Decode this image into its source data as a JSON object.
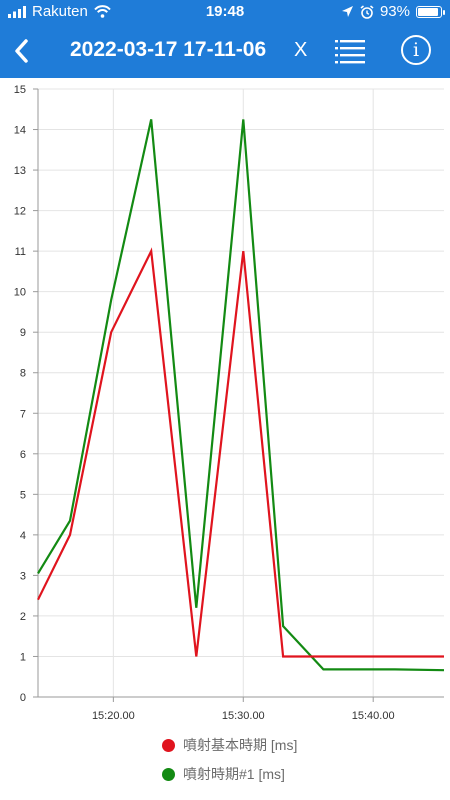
{
  "status_bar": {
    "carrier": "Rakuten",
    "time": "19:48",
    "battery": "93%",
    "battery_level": 0.93,
    "icons": [
      "signal-icon",
      "wifi-icon",
      "location-arrow-icon",
      "alarm-clock-icon",
      "battery-icon"
    ]
  },
  "nav": {
    "title": "2022-03-17 17-11-06",
    "close_label": "X",
    "info_label": "i",
    "icons": [
      "back-chevron-icon",
      "list-icon",
      "info-icon"
    ]
  },
  "colors": {
    "header": "#1f7cd8",
    "series_red": "#e0141e",
    "series_green": "#138a13"
  },
  "chart_data": {
    "type": "line",
    "x_tick_labels": [
      "15:20.00",
      "15:30.00",
      "15:40.00"
    ],
    "x_ticks_seconds": [
      1200,
      1800,
      2400
    ],
    "xlim_seconds": [
      852,
      2727
    ],
    "y_tick_labels": [
      "0",
      "1",
      "2",
      "3",
      "4",
      "5",
      "6",
      "7",
      "8",
      "9",
      "10",
      "11",
      "12",
      "13",
      "14",
      "15"
    ],
    "ylim": [
      0,
      15
    ],
    "grid": true,
    "legend_position": "bottom",
    "series": [
      {
        "name": "噴射基本時期 [ms]",
        "color": "#e0141e",
        "x_seconds": [
          852,
          1000,
          1190,
          1375,
          1583,
          1800,
          1984,
          2000,
          2200,
          2727
        ],
        "values": [
          2.4,
          4.0,
          9.0,
          11.0,
          1.0,
          11.0,
          1.0,
          1.0,
          1.0,
          1.0
        ]
      },
      {
        "name": "噴射時期#1 [ms]",
        "color": "#138a13",
        "x_seconds": [
          852,
          1000,
          1190,
          1375,
          1583,
          1800,
          1984,
          2170,
          2500,
          2727
        ],
        "values": [
          3.05,
          4.35,
          9.8,
          14.25,
          2.2,
          14.25,
          1.75,
          0.68,
          0.68,
          0.66
        ]
      }
    ]
  }
}
